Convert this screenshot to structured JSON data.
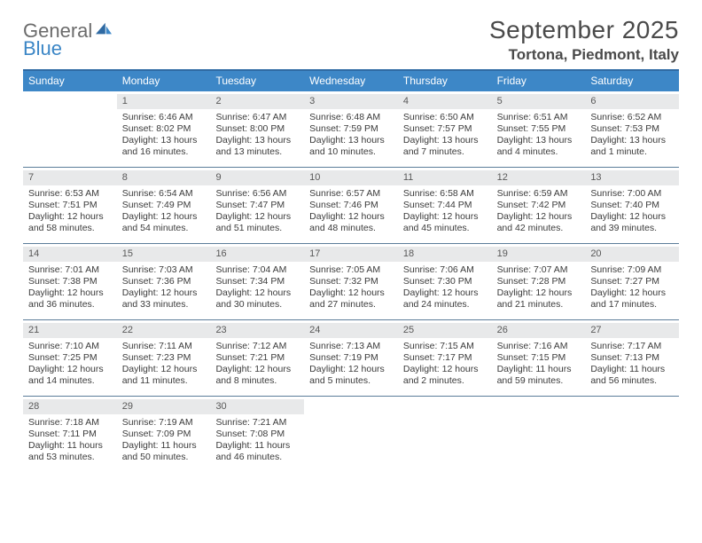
{
  "logo": {
    "word1": "General",
    "word2": "Blue"
  },
  "title": {
    "month": "September 2025",
    "location": "Tortona, Piedmont, Italy"
  },
  "colors": {
    "header_bar": "#3d87c7",
    "header_rule": "#2f6aa3",
    "daynum_bg": "#e8e9ea",
    "row_divider": "#5c7d9a",
    "text": "#3b3b3b",
    "logo_gray": "#6b6b6b",
    "logo_blue": "#3b86c6"
  },
  "day_labels": [
    "Sunday",
    "Monday",
    "Tuesday",
    "Wednesday",
    "Thursday",
    "Friday",
    "Saturday"
  ],
  "weeks": [
    [
      {
        "empty": true
      },
      {
        "n": "1",
        "sunrise": "Sunrise: 6:46 AM",
        "sunset": "Sunset: 8:02 PM",
        "d1": "Daylight: 13 hours",
        "d2": "and 16 minutes."
      },
      {
        "n": "2",
        "sunrise": "Sunrise: 6:47 AM",
        "sunset": "Sunset: 8:00 PM",
        "d1": "Daylight: 13 hours",
        "d2": "and 13 minutes."
      },
      {
        "n": "3",
        "sunrise": "Sunrise: 6:48 AM",
        "sunset": "Sunset: 7:59 PM",
        "d1": "Daylight: 13 hours",
        "d2": "and 10 minutes."
      },
      {
        "n": "4",
        "sunrise": "Sunrise: 6:50 AM",
        "sunset": "Sunset: 7:57 PM",
        "d1": "Daylight: 13 hours",
        "d2": "and 7 minutes."
      },
      {
        "n": "5",
        "sunrise": "Sunrise: 6:51 AM",
        "sunset": "Sunset: 7:55 PM",
        "d1": "Daylight: 13 hours",
        "d2": "and 4 minutes."
      },
      {
        "n": "6",
        "sunrise": "Sunrise: 6:52 AM",
        "sunset": "Sunset: 7:53 PM",
        "d1": "Daylight: 13 hours",
        "d2": "and 1 minute."
      }
    ],
    [
      {
        "n": "7",
        "sunrise": "Sunrise: 6:53 AM",
        "sunset": "Sunset: 7:51 PM",
        "d1": "Daylight: 12 hours",
        "d2": "and 58 minutes."
      },
      {
        "n": "8",
        "sunrise": "Sunrise: 6:54 AM",
        "sunset": "Sunset: 7:49 PM",
        "d1": "Daylight: 12 hours",
        "d2": "and 54 minutes."
      },
      {
        "n": "9",
        "sunrise": "Sunrise: 6:56 AM",
        "sunset": "Sunset: 7:47 PM",
        "d1": "Daylight: 12 hours",
        "d2": "and 51 minutes."
      },
      {
        "n": "10",
        "sunrise": "Sunrise: 6:57 AM",
        "sunset": "Sunset: 7:46 PM",
        "d1": "Daylight: 12 hours",
        "d2": "and 48 minutes."
      },
      {
        "n": "11",
        "sunrise": "Sunrise: 6:58 AM",
        "sunset": "Sunset: 7:44 PM",
        "d1": "Daylight: 12 hours",
        "d2": "and 45 minutes."
      },
      {
        "n": "12",
        "sunrise": "Sunrise: 6:59 AM",
        "sunset": "Sunset: 7:42 PM",
        "d1": "Daylight: 12 hours",
        "d2": "and 42 minutes."
      },
      {
        "n": "13",
        "sunrise": "Sunrise: 7:00 AM",
        "sunset": "Sunset: 7:40 PM",
        "d1": "Daylight: 12 hours",
        "d2": "and 39 minutes."
      }
    ],
    [
      {
        "n": "14",
        "sunrise": "Sunrise: 7:01 AM",
        "sunset": "Sunset: 7:38 PM",
        "d1": "Daylight: 12 hours",
        "d2": "and 36 minutes."
      },
      {
        "n": "15",
        "sunrise": "Sunrise: 7:03 AM",
        "sunset": "Sunset: 7:36 PM",
        "d1": "Daylight: 12 hours",
        "d2": "and 33 minutes."
      },
      {
        "n": "16",
        "sunrise": "Sunrise: 7:04 AM",
        "sunset": "Sunset: 7:34 PM",
        "d1": "Daylight: 12 hours",
        "d2": "and 30 minutes."
      },
      {
        "n": "17",
        "sunrise": "Sunrise: 7:05 AM",
        "sunset": "Sunset: 7:32 PM",
        "d1": "Daylight: 12 hours",
        "d2": "and 27 minutes."
      },
      {
        "n": "18",
        "sunrise": "Sunrise: 7:06 AM",
        "sunset": "Sunset: 7:30 PM",
        "d1": "Daylight: 12 hours",
        "d2": "and 24 minutes."
      },
      {
        "n": "19",
        "sunrise": "Sunrise: 7:07 AM",
        "sunset": "Sunset: 7:28 PM",
        "d1": "Daylight: 12 hours",
        "d2": "and 21 minutes."
      },
      {
        "n": "20",
        "sunrise": "Sunrise: 7:09 AM",
        "sunset": "Sunset: 7:27 PM",
        "d1": "Daylight: 12 hours",
        "d2": "and 17 minutes."
      }
    ],
    [
      {
        "n": "21",
        "sunrise": "Sunrise: 7:10 AM",
        "sunset": "Sunset: 7:25 PM",
        "d1": "Daylight: 12 hours",
        "d2": "and 14 minutes."
      },
      {
        "n": "22",
        "sunrise": "Sunrise: 7:11 AM",
        "sunset": "Sunset: 7:23 PM",
        "d1": "Daylight: 12 hours",
        "d2": "and 11 minutes."
      },
      {
        "n": "23",
        "sunrise": "Sunrise: 7:12 AM",
        "sunset": "Sunset: 7:21 PM",
        "d1": "Daylight: 12 hours",
        "d2": "and 8 minutes."
      },
      {
        "n": "24",
        "sunrise": "Sunrise: 7:13 AM",
        "sunset": "Sunset: 7:19 PM",
        "d1": "Daylight: 12 hours",
        "d2": "and 5 minutes."
      },
      {
        "n": "25",
        "sunrise": "Sunrise: 7:15 AM",
        "sunset": "Sunset: 7:17 PM",
        "d1": "Daylight: 12 hours",
        "d2": "and 2 minutes."
      },
      {
        "n": "26",
        "sunrise": "Sunrise: 7:16 AM",
        "sunset": "Sunset: 7:15 PM",
        "d1": "Daylight: 11 hours",
        "d2": "and 59 minutes."
      },
      {
        "n": "27",
        "sunrise": "Sunrise: 7:17 AM",
        "sunset": "Sunset: 7:13 PM",
        "d1": "Daylight: 11 hours",
        "d2": "and 56 minutes."
      }
    ],
    [
      {
        "n": "28",
        "sunrise": "Sunrise: 7:18 AM",
        "sunset": "Sunset: 7:11 PM",
        "d1": "Daylight: 11 hours",
        "d2": "and 53 minutes."
      },
      {
        "n": "29",
        "sunrise": "Sunrise: 7:19 AM",
        "sunset": "Sunset: 7:09 PM",
        "d1": "Daylight: 11 hours",
        "d2": "and 50 minutes."
      },
      {
        "n": "30",
        "sunrise": "Sunrise: 7:21 AM",
        "sunset": "Sunset: 7:08 PM",
        "d1": "Daylight: 11 hours",
        "d2": "and 46 minutes."
      },
      {
        "empty": true
      },
      {
        "empty": true
      },
      {
        "empty": true
      },
      {
        "empty": true
      }
    ]
  ]
}
